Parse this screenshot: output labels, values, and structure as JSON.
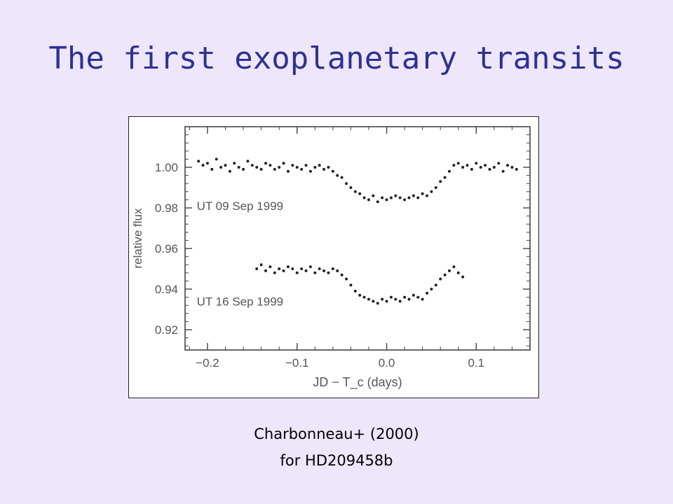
{
  "slide": {
    "title": "The first exoplanetary transits",
    "caption_line1": "Charbonneau+ (2000)",
    "caption_line2": "for HD209458b",
    "title_color": "#2f3192",
    "background_color": "#eee6fb"
  },
  "chart_data": {
    "type": "scatter",
    "xlabel": "JD − T_c (days)",
    "ylabel": "relative flux",
    "xlim": [
      -0.225,
      0.16
    ],
    "ylim": [
      0.91,
      1.02
    ],
    "xticks": [
      -0.2,
      -0.1,
      0.0,
      0.1
    ],
    "xtick_labels": [
      "−0.2",
      "−0.1",
      "0.0",
      "0.1"
    ],
    "yticks": [
      0.92,
      0.94,
      0.96,
      0.98,
      1.0
    ],
    "ytick_labels": [
      "0.92",
      "0.94",
      "0.96",
      "0.98",
      "1.00"
    ],
    "grid": false,
    "series": [
      {
        "name": "UT 09 Sep 1999",
        "x": [
          -0.21,
          -0.205,
          -0.2,
          -0.195,
          -0.19,
          -0.185,
          -0.18,
          -0.175,
          -0.17,
          -0.165,
          -0.16,
          -0.155,
          -0.15,
          -0.145,
          -0.14,
          -0.135,
          -0.13,
          -0.125,
          -0.12,
          -0.115,
          -0.11,
          -0.105,
          -0.1,
          -0.095,
          -0.09,
          -0.085,
          -0.08,
          -0.075,
          -0.07,
          -0.065,
          -0.06,
          -0.055,
          -0.05,
          -0.045,
          -0.04,
          -0.035,
          -0.03,
          -0.025,
          -0.02,
          -0.015,
          -0.01,
          -0.005,
          0.0,
          0.005,
          0.01,
          0.015,
          0.02,
          0.025,
          0.03,
          0.035,
          0.04,
          0.045,
          0.05,
          0.055,
          0.06,
          0.065,
          0.07,
          0.075,
          0.08,
          0.085,
          0.09,
          0.095,
          0.1,
          0.105,
          0.11,
          0.115,
          0.12,
          0.125,
          0.13,
          0.135,
          0.14,
          0.145
        ],
        "y": [
          1.003,
          1.001,
          1.002,
          0.999,
          1.004,
          1.0,
          1.001,
          0.998,
          1.002,
          1.0,
          0.999,
          1.003,
          1.001,
          1.0,
          0.999,
          1.002,
          1.001,
          0.999,
          1.0,
          1.002,
          0.998,
          1.001,
          1.0,
          0.999,
          1.001,
          0.998,
          1.0,
          1.001,
          0.999,
          1.0,
          0.998,
          0.996,
          0.995,
          0.992,
          0.99,
          0.988,
          0.987,
          0.985,
          0.984,
          0.986,
          0.983,
          0.985,
          0.984,
          0.985,
          0.986,
          0.985,
          0.984,
          0.985,
          0.986,
          0.985,
          0.987,
          0.986,
          0.988,
          0.99,
          0.993,
          0.995,
          0.998,
          1.001,
          1.002,
          1.0,
          1.001,
          0.999,
          1.002,
          1.0,
          1.001,
          0.999,
          1.0,
          1.002,
          0.998,
          1.001,
          1.0,
          0.999
        ]
      },
      {
        "name": "UT 16 Sep 1999",
        "x": [
          -0.145,
          -0.14,
          -0.135,
          -0.13,
          -0.125,
          -0.12,
          -0.115,
          -0.11,
          -0.105,
          -0.1,
          -0.095,
          -0.09,
          -0.085,
          -0.08,
          -0.075,
          -0.07,
          -0.065,
          -0.06,
          -0.055,
          -0.05,
          -0.045,
          -0.04,
          -0.035,
          -0.03,
          -0.025,
          -0.02,
          -0.015,
          -0.01,
          -0.005,
          0.0,
          0.005,
          0.01,
          0.015,
          0.02,
          0.025,
          0.03,
          0.035,
          0.04,
          0.045,
          0.05,
          0.055,
          0.06,
          0.065,
          0.07,
          0.075,
          0.08,
          0.085
        ],
        "y": [
          0.95,
          0.952,
          0.949,
          0.951,
          0.948,
          0.95,
          0.949,
          0.951,
          0.95,
          0.948,
          0.95,
          0.949,
          0.951,
          0.948,
          0.95,
          0.949,
          0.948,
          0.95,
          0.949,
          0.947,
          0.945,
          0.942,
          0.939,
          0.937,
          0.936,
          0.935,
          0.934,
          0.933,
          0.935,
          0.934,
          0.936,
          0.935,
          0.934,
          0.936,
          0.935,
          0.937,
          0.936,
          0.935,
          0.938,
          0.94,
          0.942,
          0.945,
          0.947,
          0.949,
          0.951,
          0.948,
          0.946
        ]
      }
    ]
  }
}
